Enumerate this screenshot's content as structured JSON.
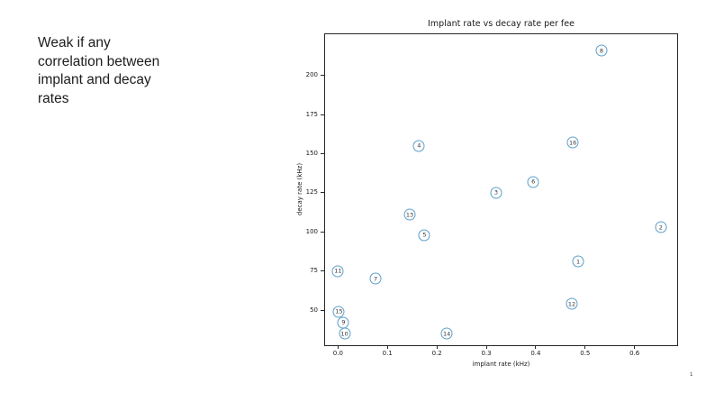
{
  "slide": {
    "note": {
      "lines": [
        "Weak if any",
        "correlation between",
        "implant and decay",
        "rates"
      ]
    },
    "page_number": "1",
    "background_color": "#ffffff",
    "text_color": "#1c1c1c"
  },
  "chart_data": {
    "type": "scatter",
    "title": "Implant rate vs decay rate per fee",
    "xlabel": "implant rate (kHz)",
    "ylabel": "decay rate (kHz)",
    "xlim": [
      -0.028,
      0.688
    ],
    "ylim": [
      27,
      227
    ],
    "x_ticks": [
      0.0,
      0.1,
      0.2,
      0.3,
      0.4,
      0.5,
      0.6
    ],
    "x_tick_labels": [
      "0.0",
      "0.1",
      "0.2",
      "0.3",
      "0.4",
      "0.5",
      "0.6"
    ],
    "y_ticks": [
      50,
      75,
      100,
      125,
      150,
      175,
      200
    ],
    "y_tick_labels": [
      "50",
      "75",
      "100",
      "125",
      "150",
      "175",
      "200"
    ],
    "grid": false,
    "legend": "none",
    "marker_style": "open-circle-with-number-label",
    "colors": {
      "marker_edge": "#5c9fca",
      "marker_label": "#343434",
      "spine": "#262626",
      "text": "#1a1a1a"
    },
    "points": [
      {
        "label": "1",
        "x": 0.486,
        "y": 81
      },
      {
        "label": "2",
        "x": 0.653,
        "y": 103
      },
      {
        "label": "3",
        "x": 0.32,
        "y": 125
      },
      {
        "label": "4",
        "x": 0.164,
        "y": 155
      },
      {
        "label": "5",
        "x": 0.175,
        "y": 98
      },
      {
        "label": "6",
        "x": 0.395,
        "y": 132
      },
      {
        "label": "7",
        "x": 0.076,
        "y": 70
      },
      {
        "label": "8",
        "x": 0.533,
        "y": 216
      },
      {
        "label": "9",
        "x": 0.011,
        "y": 42
      },
      {
        "label": "10",
        "x": 0.013,
        "y": 35
      },
      {
        "label": "11",
        "x": 0.0,
        "y": 75
      },
      {
        "label": "12",
        "x": 0.473,
        "y": 54
      },
      {
        "label": "13",
        "x": 0.145,
        "y": 111
      },
      {
        "label": "14",
        "x": 0.22,
        "y": 35
      },
      {
        "label": "15",
        "x": 0.002,
        "y": 49
      },
      {
        "label": "16",
        "x": 0.475,
        "y": 157
      }
    ]
  }
}
